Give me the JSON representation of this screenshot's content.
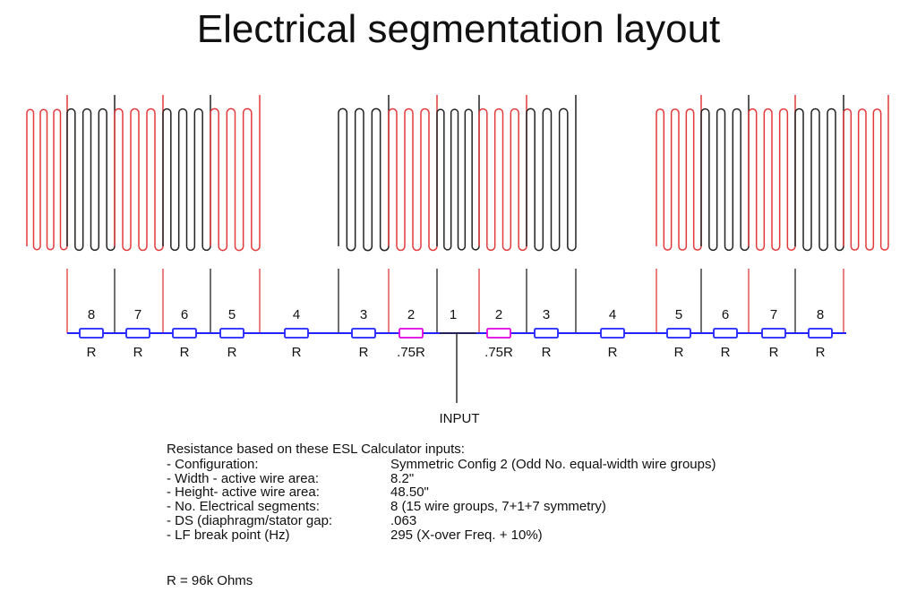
{
  "title": "Electrical segmentation layout",
  "colors": {
    "wire_red": "#e23a3a",
    "wire_black": "#222222",
    "bus_blue": "#2222ff",
    "resistor_magenta": "#e000e0"
  },
  "segments": [
    {
      "seg": "8",
      "r": "R"
    },
    {
      "seg": "7",
      "r": "R"
    },
    {
      "seg": "6",
      "r": "R"
    },
    {
      "seg": "5",
      "r": "R"
    },
    {
      "seg": "4",
      "r": "R"
    },
    {
      "seg": "3",
      "r": "R"
    },
    {
      "seg": "2",
      "r": ".75R"
    },
    {
      "seg": "1",
      "r": ""
    },
    {
      "seg": "2",
      "r": ".75R"
    },
    {
      "seg": "3",
      "r": "R"
    },
    {
      "seg": "4",
      "r": "R"
    },
    {
      "seg": "5",
      "r": "R"
    },
    {
      "seg": "6",
      "r": "R"
    },
    {
      "seg": "7",
      "r": "R"
    },
    {
      "seg": "8",
      "r": "R"
    }
  ],
  "input_label": "INPUT",
  "notes": {
    "intro": "Resistance based on these ESL Calculator inputs:",
    "rows": [
      {
        "label": "-  Configuration:",
        "value": "Symmetric Config 2  (Odd No. equal-width wire groups)"
      },
      {
        "label": "-  Width - active wire area:",
        "value": "8.2\""
      },
      {
        "label": "-  Height- active wire area:",
        "value": "48.50\""
      },
      {
        "label": "-  No. Electrical segments:",
        "value": "8   (15 wire groups,  7+1+7 symmetry)"
      },
      {
        "label": "-  DS (diaphragm/stator gap:",
        "value": ".063"
      },
      {
        "label": "-  LF break point (Hz)",
        "value": "295  (X-over Freq. + 10%)"
      }
    ],
    "r_value": "R = 96k Ohms"
  }
}
